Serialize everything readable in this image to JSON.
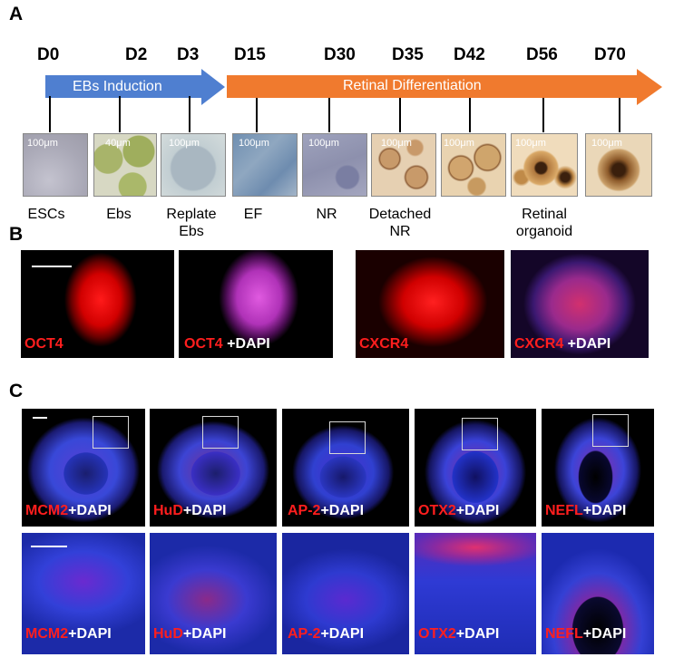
{
  "panel_a": {
    "letter": "A",
    "days": [
      "D0",
      "D2",
      "D3",
      "D15",
      "D30",
      "D35",
      "D42",
      "D56",
      "D70"
    ],
    "arrows": [
      {
        "label": "EBs Induction",
        "color": "#4f7fd0"
      },
      {
        "label": "Retinal Differentiation",
        "color": "#f07a2e"
      }
    ],
    "scale_labels": [
      "100μm",
      "40μm",
      "100μm",
      "100μm",
      "100μm",
      "100μm",
      "100μm",
      "100μm",
      "100μm"
    ],
    "stages": [
      "ESCs",
      "Ebs",
      "Replate Ebs",
      "EF",
      "NR",
      "Detached NR",
      "Retinal organoid"
    ]
  },
  "panel_b": {
    "letter": "B",
    "images": [
      {
        "marker": "OCT4",
        "suffix": ""
      },
      {
        "marker": "OCT4",
        "suffix": " +DAPI"
      },
      {
        "marker": "CXCR4",
        "suffix": ""
      },
      {
        "marker": "CXCR4",
        "suffix": " +DAPI"
      }
    ]
  },
  "panel_c": {
    "letter": "C",
    "markers": [
      "MCM2",
      "HuD",
      "AP-2",
      "OTX2",
      "NEFL"
    ],
    "suffix": "+DAPI"
  },
  "colors": {
    "marker_red": "#ff1e1e",
    "dapi_blue": "#2a3bd8"
  }
}
